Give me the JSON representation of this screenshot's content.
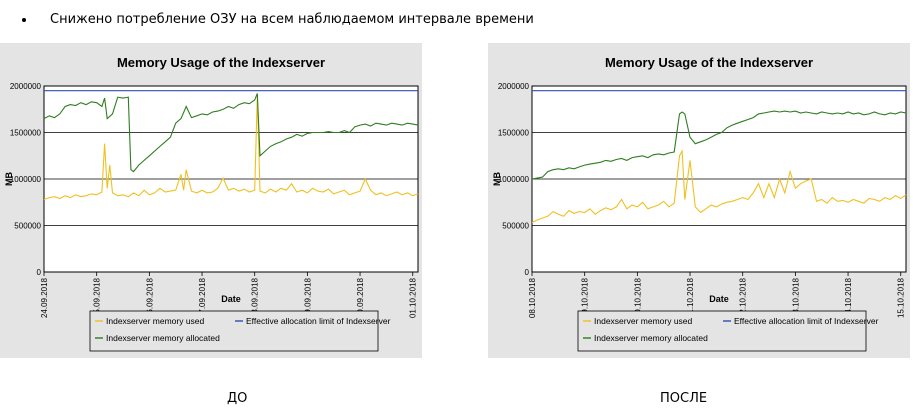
{
  "slide": {
    "bullet_text": "Снижено потребление ОЗУ на всем наблюдаемом интервале времени",
    "caption_before": "ДО",
    "caption_after": "ПОСЛЕ"
  },
  "colors": {
    "panel_bg": "#e4e4e4",
    "used": "#f0c020",
    "allocated": "#2e7d20",
    "limit": "#3050b0"
  },
  "chart_data": [
    {
      "type": "line",
      "title": "Memory Usage of the Indexserver",
      "xlabel": "Date",
      "ylabel": "MB",
      "ylim": [
        0,
        2000000
      ],
      "yticks": [
        "0",
        "500000",
        "1000000",
        "1500000",
        "2000000"
      ],
      "xticks": [
        "24.09.2018",
        "25.09.2018",
        "26.09.2018",
        "27.09.2018",
        "28.09.2018",
        "29.09.2018",
        "30.09.2018",
        "01.10.2018"
      ],
      "xrange": [
        0,
        7.1
      ],
      "grid": true,
      "legend_position": "bottom",
      "series": [
        {
          "name": "Indexserver memory used",
          "x": [
            0,
            0.1,
            0.2,
            0.3,
            0.4,
            0.5,
            0.6,
            0.7,
            0.8,
            0.9,
            1.0,
            1.1,
            1.15,
            1.2,
            1.25,
            1.3,
            1.4,
            1.5,
            1.6,
            1.7,
            1.8,
            1.9,
            2.0,
            2.1,
            2.2,
            2.3,
            2.4,
            2.5,
            2.6,
            2.65,
            2.7,
            2.8,
            2.9,
            3.0,
            3.1,
            3.2,
            3.3,
            3.4,
            3.5,
            3.6,
            3.7,
            3.8,
            3.9,
            4.0,
            4.05,
            4.1,
            4.2,
            4.3,
            4.4,
            4.5,
            4.6,
            4.7,
            4.8,
            4.9,
            5.0,
            5.1,
            5.2,
            5.3,
            5.4,
            5.5,
            5.6,
            5.7,
            5.8,
            5.9,
            6.0,
            6.1,
            6.2,
            6.3,
            6.4,
            6.5,
            6.6,
            6.7,
            6.8,
            6.9,
            7.0,
            7.1
          ],
          "y": [
            780000,
            800000,
            810000,
            790000,
            820000,
            800000,
            830000,
            810000,
            820000,
            840000,
            830000,
            860000,
            1380000,
            900000,
            1150000,
            850000,
            820000,
            830000,
            810000,
            850000,
            820000,
            880000,
            830000,
            850000,
            900000,
            860000,
            870000,
            880000,
            1050000,
            880000,
            1100000,
            870000,
            850000,
            880000,
            850000,
            860000,
            900000,
            1010000,
            880000,
            900000,
            870000,
            890000,
            860000,
            880000,
            1900000,
            870000,
            850000,
            890000,
            860000,
            900000,
            880000,
            950000,
            860000,
            880000,
            850000,
            900000,
            870000,
            860000,
            890000,
            840000,
            860000,
            880000,
            830000,
            850000,
            870000,
            1000000,
            880000,
            830000,
            850000,
            820000,
            840000,
            860000,
            830000,
            850000,
            820000,
            840000
          ]
        },
        {
          "name": "Indexserver memory allocated",
          "x": [
            0,
            0.1,
            0.2,
            0.3,
            0.4,
            0.5,
            0.6,
            0.7,
            0.8,
            0.9,
            1.0,
            1.1,
            1.15,
            1.2,
            1.3,
            1.4,
            1.5,
            1.6,
            1.65,
            1.7,
            1.8,
            1.9,
            2.0,
            2.1,
            2.2,
            2.3,
            2.4,
            2.5,
            2.6,
            2.7,
            2.8,
            2.9,
            3.0,
            3.1,
            3.2,
            3.3,
            3.4,
            3.5,
            3.6,
            3.7,
            3.8,
            3.9,
            4.0,
            4.05,
            4.1,
            4.2,
            4.3,
            4.4,
            4.5,
            4.6,
            4.7,
            4.8,
            4.9,
            5.0,
            5.1,
            5.2,
            5.3,
            5.4,
            5.5,
            5.6,
            5.7,
            5.8,
            5.9,
            6.0,
            6.1,
            6.2,
            6.3,
            6.4,
            6.5,
            6.6,
            6.7,
            6.8,
            6.9,
            7.0,
            7.1
          ],
          "y": [
            1650000,
            1680000,
            1660000,
            1700000,
            1780000,
            1800000,
            1790000,
            1820000,
            1800000,
            1830000,
            1820000,
            1780000,
            1870000,
            1650000,
            1700000,
            1880000,
            1870000,
            1880000,
            1100000,
            1080000,
            1150000,
            1200000,
            1250000,
            1300000,
            1350000,
            1400000,
            1450000,
            1600000,
            1650000,
            1780000,
            1660000,
            1680000,
            1700000,
            1690000,
            1720000,
            1730000,
            1750000,
            1780000,
            1760000,
            1800000,
            1820000,
            1810000,
            1850000,
            1920000,
            1250000,
            1300000,
            1350000,
            1380000,
            1400000,
            1430000,
            1450000,
            1480000,
            1460000,
            1490000,
            1500000,
            1500000,
            1500000,
            1510000,
            1500000,
            1500000,
            1520000,
            1500000,
            1560000,
            1580000,
            1590000,
            1570000,
            1600000,
            1590000,
            1580000,
            1600000,
            1590000,
            1580000,
            1600000,
            1590000,
            1580000
          ]
        },
        {
          "name": "Effective allocation limit of Indexserver",
          "x": [
            0,
            7.1
          ],
          "y": [
            1950000,
            1950000
          ]
        }
      ]
    },
    {
      "type": "line",
      "title": "Memory Usage of the Indexserver",
      "xlabel": "Date",
      "ylabel": "MB",
      "ylim": [
        0,
        2000000
      ],
      "yticks": [
        "0",
        "500000",
        "1000000",
        "1500000",
        "2000000"
      ],
      "xticks": [
        "08.10.2018",
        "09.10.2018",
        "10.10.2018",
        "11.10.2018",
        "12.10.2018",
        "13.10.2018",
        "14.10.2018",
        "15.10.2018"
      ],
      "xrange": [
        0,
        7.1
      ],
      "grid": true,
      "legend_position": "bottom",
      "series": [
        {
          "name": "Indexserver memory used",
          "x": [
            0,
            0.1,
            0.2,
            0.3,
            0.4,
            0.5,
            0.6,
            0.7,
            0.8,
            0.9,
            1.0,
            1.1,
            1.2,
            1.3,
            1.4,
            1.5,
            1.6,
            1.7,
            1.8,
            1.9,
            2.0,
            2.1,
            2.2,
            2.3,
            2.4,
            2.5,
            2.6,
            2.7,
            2.8,
            2.85,
            2.9,
            3.0,
            3.1,
            3.2,
            3.3,
            3.4,
            3.5,
            3.6,
            3.7,
            3.8,
            3.9,
            4.0,
            4.1,
            4.2,
            4.3,
            4.4,
            4.5,
            4.6,
            4.7,
            4.8,
            4.9,
            5.0,
            5.1,
            5.2,
            5.3,
            5.4,
            5.5,
            5.6,
            5.7,
            5.8,
            5.9,
            6.0,
            6.1,
            6.2,
            6.3,
            6.4,
            6.5,
            6.6,
            6.7,
            6.8,
            6.9,
            7.0,
            7.1
          ],
          "y": [
            530000,
            560000,
            580000,
            600000,
            650000,
            620000,
            600000,
            660000,
            630000,
            650000,
            640000,
            680000,
            620000,
            660000,
            690000,
            670000,
            700000,
            780000,
            680000,
            720000,
            700000,
            750000,
            680000,
            700000,
            720000,
            760000,
            700000,
            740000,
            1250000,
            1300000,
            780000,
            1200000,
            700000,
            640000,
            680000,
            720000,
            700000,
            730000,
            750000,
            760000,
            780000,
            800000,
            780000,
            850000,
            950000,
            800000,
            950000,
            800000,
            1000000,
            850000,
            1080000,
            900000,
            950000,
            980000,
            1000000,
            760000,
            780000,
            740000,
            800000,
            760000,
            770000,
            750000,
            780000,
            760000,
            740000,
            790000,
            780000,
            760000,
            800000,
            780000,
            820000,
            790000,
            830000
          ]
        },
        {
          "name": "Indexserver memory allocated",
          "x": [
            0,
            0.1,
            0.2,
            0.3,
            0.4,
            0.5,
            0.6,
            0.7,
            0.8,
            0.9,
            1.0,
            1.1,
            1.2,
            1.3,
            1.4,
            1.5,
            1.6,
            1.7,
            1.8,
            1.9,
            2.0,
            2.1,
            2.2,
            2.3,
            2.4,
            2.5,
            2.6,
            2.7,
            2.8,
            2.85,
            2.9,
            3.0,
            3.1,
            3.2,
            3.3,
            3.4,
            3.5,
            3.6,
            3.7,
            3.8,
            3.9,
            4.0,
            4.1,
            4.2,
            4.3,
            4.4,
            4.5,
            4.6,
            4.7,
            4.8,
            4.9,
            5.0,
            5.1,
            5.2,
            5.3,
            5.4,
            5.5,
            5.6,
            5.7,
            5.8,
            5.9,
            6.0,
            6.1,
            6.2,
            6.3,
            6.4,
            6.5,
            6.6,
            6.7,
            6.8,
            6.9,
            7.0,
            7.1
          ],
          "y": [
            1000000,
            1010000,
            1020000,
            1080000,
            1100000,
            1110000,
            1100000,
            1120000,
            1110000,
            1130000,
            1150000,
            1160000,
            1170000,
            1180000,
            1200000,
            1190000,
            1210000,
            1220000,
            1200000,
            1230000,
            1240000,
            1250000,
            1230000,
            1260000,
            1270000,
            1260000,
            1280000,
            1290000,
            1700000,
            1720000,
            1700000,
            1450000,
            1380000,
            1400000,
            1420000,
            1450000,
            1480000,
            1500000,
            1550000,
            1580000,
            1600000,
            1620000,
            1640000,
            1660000,
            1700000,
            1710000,
            1720000,
            1730000,
            1720000,
            1730000,
            1720000,
            1730000,
            1710000,
            1720000,
            1710000,
            1700000,
            1720000,
            1710000,
            1700000,
            1710000,
            1700000,
            1720000,
            1700000,
            1710000,
            1690000,
            1700000,
            1720000,
            1700000,
            1690000,
            1710000,
            1700000,
            1720000,
            1710000
          ]
        },
        {
          "name": "Effective allocation limit of Indexserver",
          "x": [
            0,
            7.1
          ],
          "y": [
            1950000,
            1950000
          ]
        }
      ]
    }
  ]
}
